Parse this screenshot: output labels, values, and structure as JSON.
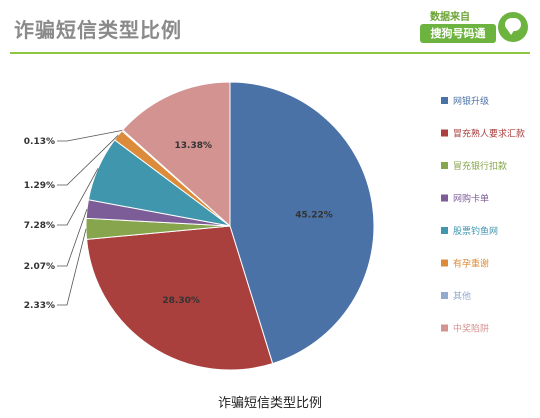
{
  "header": {
    "title": "诈骗短信类型比例",
    "source_prefix": "数据来自",
    "brand_name": "搜狗号码通"
  },
  "chart_data": {
    "type": "pie",
    "title": "诈骗短信类型比例",
    "legend_position": "right",
    "categories": [
      "网银升级",
      "冒充熟人要求汇款",
      "冒充银行扣款",
      "网购卡单",
      "股票钓鱼网",
      "有孕重谢",
      "其他",
      "中奖陷阱"
    ],
    "values": [
      45.22,
      28.3,
      2.33,
      2.07,
      7.28,
      1.29,
      0.13,
      13.38
    ],
    "labels": [
      "45.22%",
      "28.30%",
      "2.33%",
      "2.07%",
      "7.28%",
      "1.29%",
      "0.13%",
      "13.38%"
    ],
    "colors": [
      "#4a72a6",
      "#a9403e",
      "#86a54d",
      "#7c5d98",
      "#3f96ad",
      "#dc8b3a",
      "#93a9cf",
      "#d39391"
    ]
  }
}
